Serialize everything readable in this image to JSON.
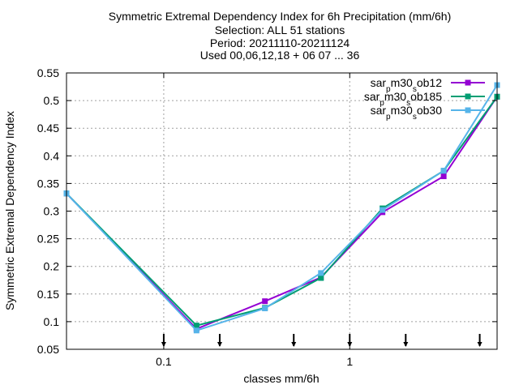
{
  "chart_data": {
    "type": "line",
    "title_lines": [
      "Symmetric Extremal Dependency Index  for 6h Precipitation (mm/6h)",
      "Selection: ALL     51 stations",
      "Period: 20211110-20211124",
      "Used 00,06,12,18 + 06 07 ... 36"
    ],
    "xlabel": "classes mm/6h",
    "ylabel": "Symmetric Extremal Dependency Index",
    "xscale": "log",
    "xlim": [
      0.03,
      6.2
    ],
    "ylim": [
      0.05,
      0.55
    ],
    "xticks": [
      {
        "value": 0.1,
        "label": "0.1"
      },
      {
        "value": 1,
        "label": "1"
      }
    ],
    "yticks": [
      {
        "value": 0.05,
        "label": "0.05"
      },
      {
        "value": 0.1,
        "label": "0.1"
      },
      {
        "value": 0.15,
        "label": "0.15"
      },
      {
        "value": 0.2,
        "label": "0.2"
      },
      {
        "value": 0.25,
        "label": "0.25"
      },
      {
        "value": 0.3,
        "label": "0.3"
      },
      {
        "value": 0.35,
        "label": "0.35"
      },
      {
        "value": 0.4,
        "label": "0.4"
      },
      {
        "value": 0.45,
        "label": "0.45"
      },
      {
        "value": 0.5,
        "label": "0.5"
      },
      {
        "value": 0.55,
        "label": "0.55"
      }
    ],
    "class_markers_x": [
      0.1,
      0.2,
      0.5,
      1,
      2,
      5
    ],
    "grid": true,
    "legend_position": "top-right",
    "x": [
      0.03,
      0.15,
      0.35,
      0.7,
      1.5,
      3.2,
      6.2
    ],
    "series": [
      {
        "name_parts": [
          "sar",
          "p",
          "m30",
          "s",
          "ob12"
        ],
        "color": "#9400d3",
        "marker": "square",
        "values": [
          0.332,
          0.087,
          0.137,
          0.18,
          0.298,
          0.363,
          0.507
        ]
      },
      {
        "name_parts": [
          "sar",
          "p",
          "m30",
          "s",
          "ob185"
        ],
        "color": "#009e73",
        "marker": "square",
        "values": [
          0.332,
          0.093,
          0.125,
          0.179,
          0.305,
          0.373,
          0.507
        ]
      },
      {
        "name_parts": [
          "sar",
          "p",
          "m30",
          "s",
          "ob30"
        ],
        "color": "#56b4e9",
        "marker": "square",
        "values": [
          0.332,
          0.084,
          0.124,
          0.188,
          0.302,
          0.373,
          0.528
        ]
      }
    ]
  }
}
